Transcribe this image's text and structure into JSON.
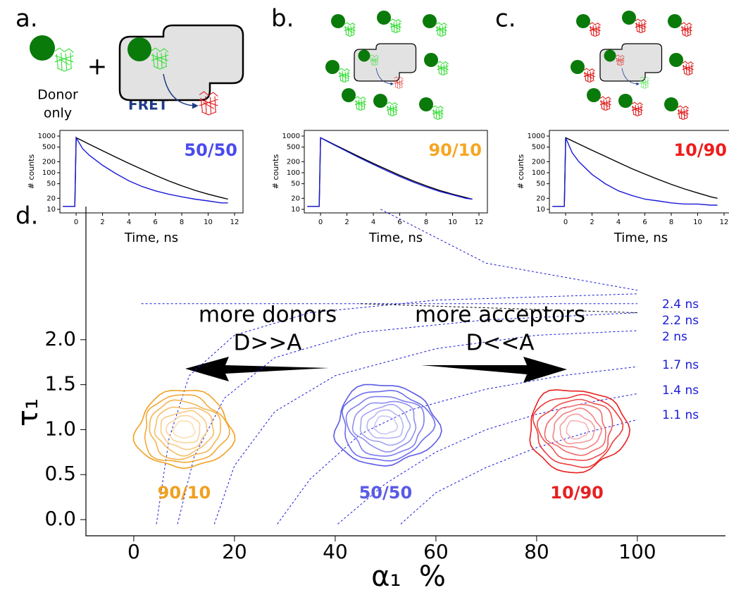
{
  "diagram": {
    "plus": "+",
    "donor_label": [
      "Donor",
      "only"
    ],
    "fret": "FRET"
  },
  "chart_data": [
    {
      "type": "line",
      "panel_label": "a.",
      "title": "50/50",
      "title_color": "#4a4aef",
      "xlabel": "Time, ns",
      "ylabel": "# counts",
      "log_y": true,
      "xlim": [
        -1.23,
        12.64
      ],
      "ylim": [
        8,
        1425
      ],
      "xticks": [
        0,
        2,
        4,
        6,
        8,
        10,
        12
      ],
      "yticks": [
        10,
        20,
        50,
        100,
        200,
        500,
        1000
      ],
      "x": [
        -1,
        -0.1,
        0,
        0.5,
        1,
        2,
        3,
        4,
        5,
        6,
        7,
        8,
        9,
        10,
        11,
        11.5
      ],
      "series": [
        {
          "color": "#000000",
          "values": [
            12,
            12,
            900,
            735,
            598,
            399,
            266,
            180,
            123,
            85,
            60,
            44,
            33,
            26,
            21,
            19
          ]
        },
        {
          "color": "#1a1ad8",
          "values": [
            12,
            12,
            900,
            450,
            300,
            160,
            95,
            60,
            42,
            32,
            26,
            22,
            19,
            17,
            15,
            15
          ]
        }
      ]
    },
    {
      "type": "line",
      "panel_label": "b.",
      "title": "90/10",
      "title_color": "#f5a623",
      "xlabel": "Time, ns",
      "ylabel": "# counts",
      "log_y": true,
      "xlim": [
        -1.23,
        12.64
      ],
      "ylim": [
        8,
        1425
      ],
      "xticks": [
        0,
        2,
        4,
        6,
        8,
        10,
        12
      ],
      "yticks": [
        10,
        20,
        50,
        100,
        200,
        500,
        1000
      ],
      "x": [
        -1,
        -0.1,
        0,
        0.5,
        1,
        2,
        3,
        4,
        5,
        6,
        7,
        8,
        9,
        10,
        11,
        11.5
      ],
      "series": [
        {
          "color": "#000000",
          "values": [
            12,
            12,
            900,
            735,
            598,
            399,
            266,
            180,
            123,
            85,
            60,
            44,
            33,
            26,
            21,
            19
          ]
        },
        {
          "color": "#1a1ad8",
          "values": [
            12,
            12,
            900,
            720,
            580,
            380,
            250,
            168,
            114,
            79,
            56,
            41,
            31,
            25,
            20,
            19
          ]
        }
      ]
    },
    {
      "type": "line",
      "panel_label": "c.",
      "title": "10/90",
      "title_color": "#ee1c1c",
      "xlabel": "Time, ns",
      "ylabel": "# counts",
      "log_y": true,
      "xlim": [
        -1.23,
        12.64
      ],
      "ylim": [
        8,
        1425
      ],
      "xticks": [
        0,
        2,
        4,
        6,
        8,
        10,
        12
      ],
      "yticks": [
        10,
        20,
        50,
        100,
        200,
        500,
        1000
      ],
      "x": [
        -1,
        -0.1,
        0,
        0.5,
        1,
        2,
        3,
        4,
        5,
        6,
        7,
        8,
        9,
        10,
        11,
        11.5
      ],
      "series": [
        {
          "color": "#000000",
          "values": [
            12,
            12,
            900,
            740,
            610,
            410,
            280,
            190,
            130,
            92,
            66,
            48,
            36,
            28,
            22,
            20
          ]
        },
        {
          "color": "#1a1ad8",
          "values": [
            12,
            12,
            900,
            350,
            200,
            90,
            50,
            32,
            24,
            19,
            17,
            15,
            14,
            14,
            13,
            13
          ]
        }
      ]
    },
    {
      "type": "contour",
      "panel_label": "d.",
      "xlabel": "α₁  %",
      "ylabel": "τ₁",
      "xlim": [
        -9.5,
        117.5
      ],
      "ylim": [
        -0.18,
        3.48
      ],
      "xticks": [
        0,
        20,
        40,
        60,
        80,
        100
      ],
      "yticks": [
        {
          "value": 0,
          "label": "0.0"
        },
        {
          "value": 0.5,
          "label": "0.5"
        },
        {
          "value": 1,
          "label": "1.0"
        },
        {
          "value": 1.5,
          "label": "1.5"
        },
        {
          "value": 2,
          "label": "2.0"
        }
      ],
      "annotations": [
        "more donors",
        "D>>A",
        "more acceptors",
        "D<<A"
      ],
      "series": [
        {
          "name": "90/10",
          "color": "#f0a020",
          "x": 10,
          "y": 1.0
        },
        {
          "name": "50/50",
          "color": "#5a5ae6",
          "x": 50,
          "y": 1.05
        },
        {
          "name": "10/90",
          "color": "#e82020",
          "x": 88,
          "y": 1.0
        }
      ],
      "iso_lines": [
        {
          "name": "2.4 ns",
          "color": "#1a1ad8",
          "x": [
            4.5,
            7,
            11,
            20,
            35,
            60,
            100
          ],
          "values": [
            -0.05,
            0.9,
            1.6,
            2.05,
            2.3,
            2.44,
            2.51
          ]
        },
        {
          "name": "2.2 ns",
          "color": "#1a1ad8",
          "x": [
            8.7,
            12,
            18,
            28,
            45,
            70,
            100
          ],
          "values": [
            -0.05,
            0.7,
            1.35,
            1.8,
            2.08,
            2.22,
            2.3
          ]
        },
        {
          "name": "2 ns",
          "color": "#1a1ad8",
          "x": [
            16,
            20,
            28,
            40,
            60,
            80,
            100
          ],
          "values": [
            -0.05,
            0.6,
            1.2,
            1.6,
            1.9,
            2.05,
            2.1
          ]
        },
        {
          "name": "1.7 ns",
          "color": "#1a1ad8",
          "x": [
            28.5,
            35,
            45,
            55,
            70,
            85,
            100
          ],
          "values": [
            -0.05,
            0.45,
            0.95,
            1.22,
            1.45,
            1.6,
            1.7
          ]
        },
        {
          "name": "1.4 ns",
          "color": "#1a1ad8",
          "x": [
            40.5,
            50,
            60,
            70,
            80,
            90,
            100
          ],
          "values": [
            -0.05,
            0.4,
            0.75,
            1.0,
            1.17,
            1.3,
            1.4
          ]
        },
        {
          "name": "1.1 ns",
          "color": "#1a1ad8",
          "x": [
            53,
            60,
            70,
            80,
            90,
            100
          ],
          "values": [
            -0.05,
            0.3,
            0.58,
            0.8,
            0.97,
            1.11
          ]
        },
        {
          "color": "#1a1ad8",
          "x": [
            1.5,
            100
          ],
          "values": [
            2.4,
            2.4
          ]
        },
        {
          "color": "#000000",
          "x": [
            45,
            100
          ],
          "values": [
            2.4,
            2.3
          ]
        },
        {
          "color": "#1a1ad8",
          "x": [
            49,
            70,
            100
          ],
          "values": [
            3.45,
            2.85,
            2.55
          ]
        }
      ]
    }
  ]
}
